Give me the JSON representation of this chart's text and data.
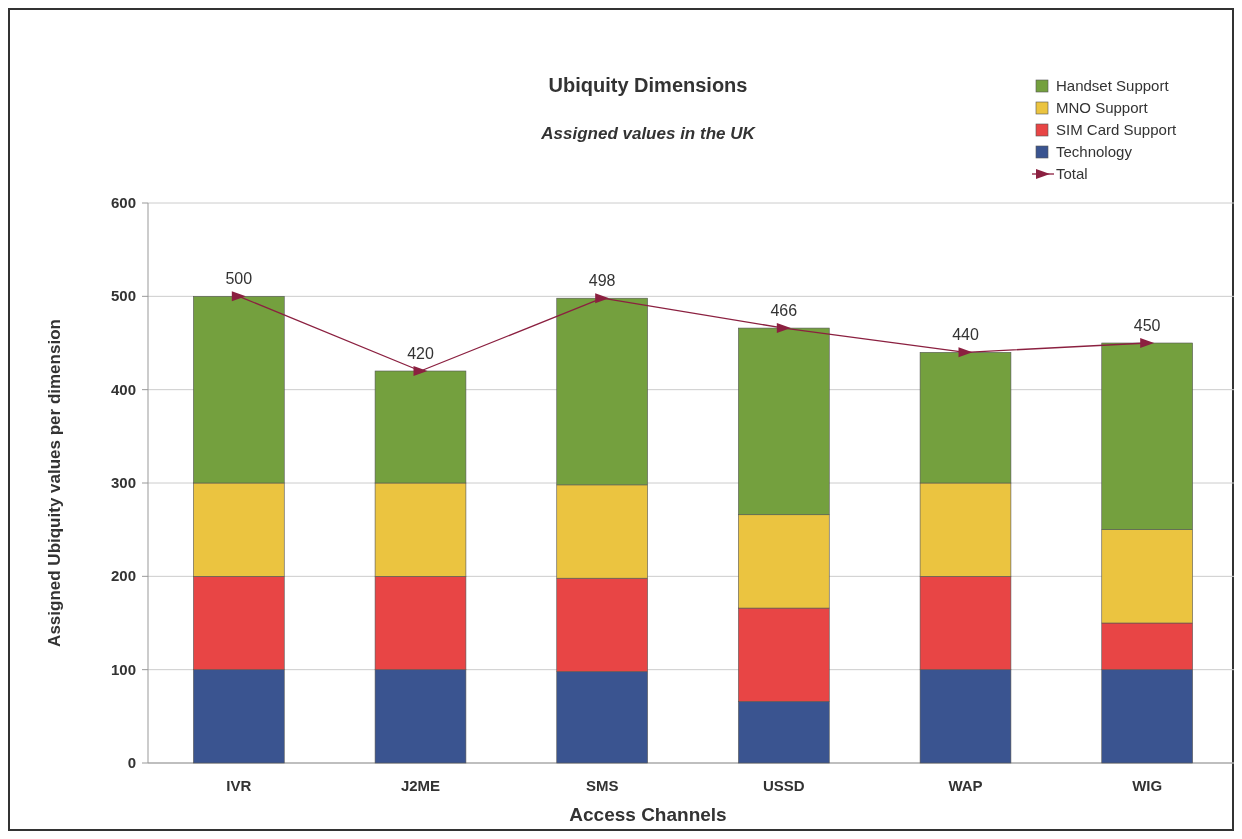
{
  "chart_data": {
    "type": "bar",
    "title": "Ubiquity Dimensions",
    "subtitle": "Assigned values in the UK",
    "xlabel": "Access Channels",
    "ylabel": "Assigned Ubiquity values per dimension",
    "categories": [
      "IVR",
      "J2ME",
      "SMS",
      "USSD",
      "WAP",
      "WIG"
    ],
    "stacked": true,
    "series": [
      {
        "name": "Technology",
        "color": "#3a5490",
        "values": [
          100,
          100,
          98,
          66,
          100,
          100
        ]
      },
      {
        "name": "SIM Card Support",
        "color": "#e84545",
        "values": [
          100,
          100,
          100,
          100,
          100,
          50
        ]
      },
      {
        "name": "MNO Support",
        "color": "#ebc440",
        "values": [
          100,
          100,
          100,
          100,
          100,
          100
        ]
      },
      {
        "name": "Handset Support",
        "color": "#74a03e",
        "values": [
          200,
          120,
          200,
          200,
          140,
          200
        ]
      },
      {
        "name": "Total",
        "type": "line",
        "color": "#8b2040",
        "marker": "triangle",
        "values": [
          500,
          420,
          498,
          466,
          440,
          450
        ],
        "value_labels": [
          "500",
          "420",
          "498",
          "466",
          "440",
          "450"
        ]
      }
    ],
    "ylim": [
      0,
      600
    ],
    "yticks": [
      0,
      100,
      200,
      300,
      400,
      500,
      600
    ],
    "grid": "y",
    "legend": "top right"
  }
}
